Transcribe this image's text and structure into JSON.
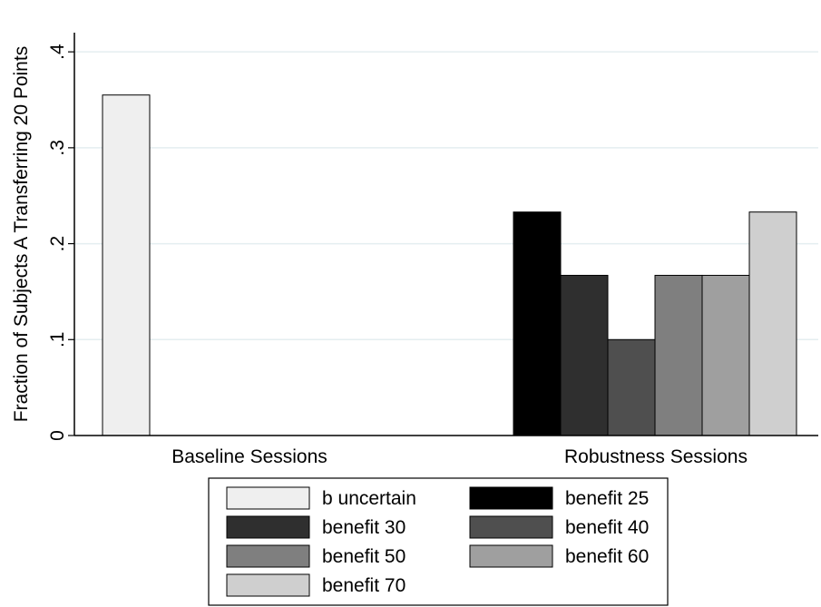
{
  "chart_data": {
    "type": "bar",
    "title": "",
    "xlabel": "",
    "ylabel": "Fraction of Subjects A Transferring 20 Points",
    "ylim": [
      0,
      0.42
    ],
    "yticks": [
      {
        "value": 0,
        "label": "0"
      },
      {
        "value": 0.1,
        "label": ".1"
      },
      {
        "value": 0.2,
        "label": ".2"
      },
      {
        "value": 0.3,
        "label": ".3"
      },
      {
        "value": 0.4,
        "label": ".4"
      }
    ],
    "grid": true,
    "legend_position": "bottom",
    "categories": [
      "Baseline Sessions",
      "Robustness Sessions"
    ],
    "series": [
      {
        "name": "b uncertain",
        "color": "#efefef",
        "values": [
          0.355,
          null
        ]
      },
      {
        "name": "benefit 25",
        "color": "#000000",
        "values": [
          null,
          0.233
        ]
      },
      {
        "name": "benefit 30",
        "color": "#2f2f2f",
        "values": [
          null,
          0.167
        ]
      },
      {
        "name": "benefit 40",
        "color": "#4f4f4f",
        "values": [
          null,
          0.1
        ]
      },
      {
        "name": "benefit 50",
        "color": "#7f7f7f",
        "values": [
          null,
          0.167
        ]
      },
      {
        "name": "benefit 60",
        "color": "#9f9f9f",
        "values": [
          null,
          0.167
        ]
      },
      {
        "name": "benefit 70",
        "color": "#cfcfcf",
        "values": [
          null,
          0.233
        ]
      }
    ]
  }
}
